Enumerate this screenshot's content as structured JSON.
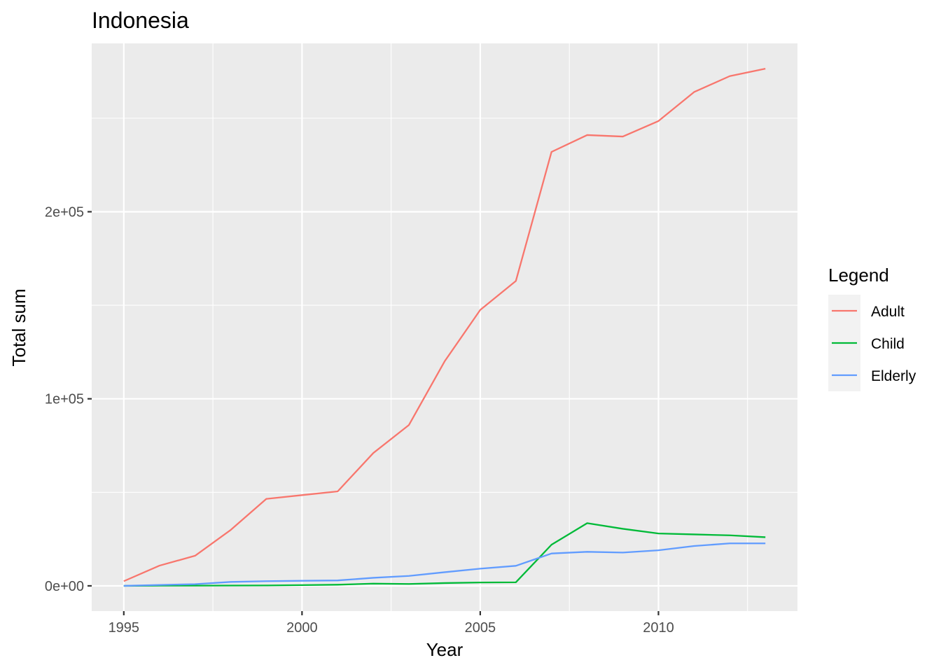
{
  "chart_data": {
    "type": "line",
    "title": "Indonesia",
    "xlabel": "Year",
    "ylabel": "Total sum",
    "x": [
      1995,
      1996,
      1997,
      1998,
      1999,
      2000,
      2001,
      2002,
      2003,
      2004,
      2005,
      2006,
      2007,
      2008,
      2009,
      2010,
      2011,
      2012,
      2013
    ],
    "xlim": [
      1994.1,
      2013.9
    ],
    "ylim": [
      -13500,
      290000
    ],
    "x_ticks": [
      1995,
      2000,
      2005,
      2010
    ],
    "x_tick_labels": [
      "1995",
      "2000",
      "2005",
      "2010"
    ],
    "y_ticks": [
      0,
      100000,
      200000
    ],
    "y_tick_labels": [
      "0e+00",
      "1e+05",
      "2e+05"
    ],
    "grid": true,
    "panel_background": "#ebebeb",
    "legend": {
      "title": "Legend",
      "position": "right"
    },
    "series": [
      {
        "name": "Adult",
        "color": "#f8766d",
        "values": [
          2500,
          10800,
          16100,
          29900,
          46500,
          48500,
          50500,
          71000,
          86000,
          120000,
          147500,
          163000,
          232000,
          241000,
          240200,
          248500,
          264000,
          272500,
          276500
        ]
      },
      {
        "name": "Child",
        "color": "#00ba38",
        "values": [
          0,
          100,
          100,
          150,
          200,
          400,
          600,
          1200,
          1000,
          1500,
          1800,
          1900,
          22000,
          33500,
          30500,
          28000,
          27500,
          27000,
          26000
        ]
      },
      {
        "name": "Elderly",
        "color": "#619cff",
        "values": [
          0,
          500,
          900,
          2100,
          2500,
          2700,
          2900,
          4300,
          5300,
          7300,
          9200,
          10700,
          17300,
          18200,
          17800,
          19000,
          21300,
          22700,
          22700
        ]
      }
    ]
  }
}
